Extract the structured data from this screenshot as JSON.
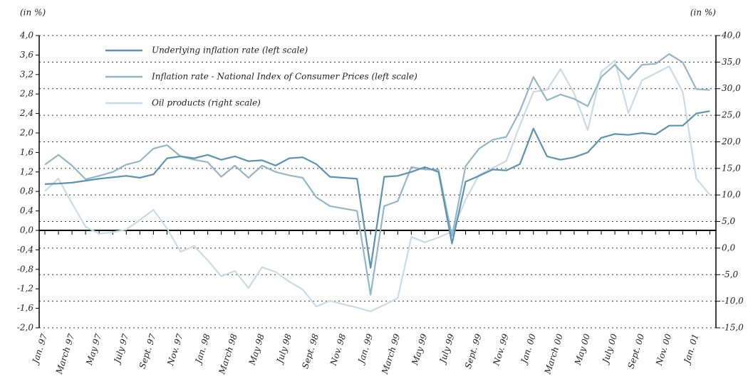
{
  "chart_data": {
    "type": "line",
    "y_label": "(in %)",
    "y2_label": "(in %)",
    "categories": [
      "Jan. 97",
      null,
      "March 97",
      null,
      "May 97",
      null,
      "July 97",
      null,
      "Sept. 97",
      null,
      "Nov. 97",
      null,
      "Jan. 98",
      null,
      "March 98",
      null,
      "May 98",
      null,
      "July 98",
      null,
      "Sept. 98",
      null,
      "Nov. 98",
      null,
      "Jan. 99",
      null,
      "March 99",
      null,
      "May 99",
      null,
      "July 99",
      null,
      "Sept. 99",
      null,
      "Nov. 99",
      null,
      "Jan. 00",
      null,
      "March 00",
      null,
      "May 00",
      null,
      "July 00",
      null,
      "Sept. 00",
      null,
      "Nov. 00",
      null,
      "Jan. 01",
      null
    ],
    "series": [
      {
        "name": "Underlying inflation rate (left scale)",
        "color": "#5b93b1",
        "axis": "y",
        "values": [
          0.95,
          0.96,
          0.98,
          1.02,
          1.06,
          1.09,
          1.12,
          1.08,
          1.15,
          1.48,
          1.52,
          1.48,
          1.55,
          1.45,
          1.52,
          1.42,
          1.44,
          1.33,
          1.48,
          1.5,
          1.36,
          1.1,
          1.08,
          1.06,
          -0.77,
          1.1,
          1.12,
          1.2,
          1.3,
          1.2,
          -0.27,
          1.0,
          1.12,
          1.25,
          1.23,
          1.36,
          2.09,
          1.52,
          1.45,
          1.5,
          1.6,
          1.9,
          1.98,
          1.96,
          2.0,
          1.97,
          2.15,
          2.15,
          2.4,
          2.45
        ]
      },
      {
        "name": "Inflation rate - National Index of Consumer Prices (left scale)",
        "color": "#92b6ca",
        "axis": "y",
        "values": [
          1.35,
          1.55,
          1.33,
          1.05,
          1.12,
          1.2,
          1.35,
          1.42,
          1.68,
          1.75,
          1.52,
          1.45,
          1.4,
          1.1,
          1.33,
          1.08,
          1.33,
          1.2,
          1.13,
          1.08,
          0.68,
          0.5,
          0.45,
          0.4,
          -1.32,
          0.5,
          0.6,
          1.3,
          1.25,
          1.25,
          -0.12,
          1.32,
          1.68,
          1.86,
          1.92,
          2.45,
          3.15,
          2.67,
          2.79,
          2.7,
          2.55,
          3.15,
          3.4,
          3.1,
          3.4,
          3.42,
          3.62,
          3.45,
          2.9,
          2.88
        ]
      },
      {
        "name": "Oil products (right scale)",
        "color": "#c8dbe6",
        "axis": "y2",
        "values": [
          10.7,
          13.1,
          8.4,
          4.0,
          2.7,
          3.0,
          3.5,
          5.3,
          7.2,
          3.7,
          -0.7,
          0.4,
          -2.3,
          -5.3,
          -4.3,
          -7.5,
          -3.6,
          -4.5,
          -6.3,
          -7.8,
          -11.0,
          -9.9,
          -10.6,
          -11.2,
          -11.9,
          -10.7,
          -9.4,
          2.1,
          1.1,
          2.0,
          3.1,
          9.1,
          13.8,
          15.1,
          16.4,
          23.1,
          29.4,
          29.8,
          33.7,
          29.1,
          22.2,
          33.2,
          35.3,
          25.4,
          31.6,
          32.9,
          34.2,
          29.4,
          13.1,
          10.0
        ]
      }
    ],
    "ylim": [
      -2.0,
      4.0
    ],
    "yticks": [
      {
        "value": 4.0,
        "label": "4,0"
      },
      {
        "value": 3.6,
        "label": "3,6"
      },
      {
        "value": 3.2,
        "label": "3,2"
      },
      {
        "value": 2.8,
        "label": "2,8"
      },
      {
        "value": 2.4,
        "label": "2,4"
      },
      {
        "value": 2.0,
        "label": "2,0"
      },
      {
        "value": 1.6,
        "label": "1,6"
      },
      {
        "value": 1.2,
        "label": "1,2"
      },
      {
        "value": 0.8,
        "label": "0,8"
      },
      {
        "value": 0.4,
        "label": "0,4"
      },
      {
        "value": 0.0,
        "label": "0,0"
      },
      {
        "value": -0.4,
        "label": "-0,4"
      },
      {
        "value": -0.8,
        "label": "-0,8"
      },
      {
        "value": -1.2,
        "label": "-1,2"
      },
      {
        "value": -1.6,
        "label": "-1,6"
      },
      {
        "value": -2.0,
        "label": "-2,0"
      }
    ],
    "y2lim": [
      -15.0,
      40.0
    ],
    "y2ticks": [
      {
        "value": 40,
        "label": "40,0"
      },
      {
        "value": 35,
        "label": "35,0"
      },
      {
        "value": 30,
        "label": "30,0"
      },
      {
        "value": 25,
        "label": "25,0"
      },
      {
        "value": 20,
        "label": "20,0"
      },
      {
        "value": 15,
        "label": "15,0"
      },
      {
        "value": 10,
        "label": "10,0"
      },
      {
        "value": 5,
        "label": "5,0"
      },
      {
        "value": 0,
        "label": "0,0"
      },
      {
        "value": -5,
        "label": "-5,0"
      },
      {
        "value": -10,
        "label": "-10,0"
      },
      {
        "value": -15,
        "label": "-15,0"
      }
    ],
    "grid": true,
    "legend": "upper left"
  }
}
